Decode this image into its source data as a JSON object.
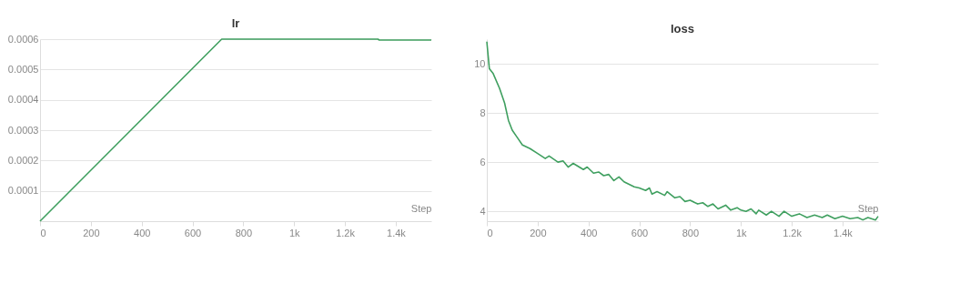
{
  "chart_data": [
    {
      "type": "line",
      "title": "lr",
      "xlabel": "Step",
      "x": [
        0,
        715,
        1330,
        1335,
        1540
      ],
      "series": [
        {
          "color": "#3f9f5f",
          "values": [
            0,
            0.0006,
            0.0006,
            0.000597,
            0.000597
          ]
        }
      ],
      "xlim": [
        0,
        1540
      ],
      "ylim": [
        0,
        0.0006
      ],
      "xticks": [
        0,
        200,
        400,
        600,
        800,
        {
          "value": 1000,
          "label": "1k"
        },
        {
          "value": 1200,
          "label": "1.2k"
        },
        {
          "value": 1400,
          "label": "1.4k"
        }
      ],
      "yticks": [
        0.0001,
        0.0002,
        0.0003,
        0.0004,
        0.0005,
        0.0006
      ],
      "grid": "y",
      "legend": false
    },
    {
      "type": "line",
      "title": "loss",
      "xlabel": "Step",
      "x": [
        0,
        10,
        25,
        50,
        70,
        85,
        100,
        120,
        140,
        170,
        200,
        230,
        245,
        280,
        300,
        320,
        340,
        380,
        395,
        420,
        440,
        460,
        480,
        500,
        520,
        540,
        560,
        580,
        600,
        625,
        640,
        650,
        670,
        700,
        710,
        740,
        760,
        780,
        800,
        830,
        850,
        870,
        890,
        910,
        940,
        960,
        985,
        1000,
        1020,
        1040,
        1060,
        1070,
        1100,
        1120,
        1150,
        1170,
        1200,
        1230,
        1260,
        1290,
        1320,
        1340,
        1370,
        1400,
        1430,
        1460,
        1480,
        1500,
        1530,
        1540
      ],
      "series": [
        {
          "color": "#3f9f5f",
          "values": [
            10.9,
            9.8,
            9.6,
            9.0,
            8.4,
            7.7,
            7.3,
            7.0,
            6.7,
            6.55,
            6.35,
            6.15,
            6.25,
            6.0,
            6.05,
            5.8,
            5.95,
            5.7,
            5.8,
            5.55,
            5.6,
            5.45,
            5.5,
            5.25,
            5.4,
            5.2,
            5.1,
            5.0,
            4.95,
            4.85,
            4.95,
            4.7,
            4.8,
            4.65,
            4.8,
            4.55,
            4.6,
            4.4,
            4.45,
            4.3,
            4.35,
            4.2,
            4.3,
            4.1,
            4.25,
            4.05,
            4.15,
            4.05,
            4.0,
            4.1,
            3.9,
            4.05,
            3.85,
            4.0,
            3.8,
            4.0,
            3.8,
            3.9,
            3.75,
            3.85,
            3.75,
            3.85,
            3.7,
            3.8,
            3.7,
            3.75,
            3.65,
            3.75,
            3.65,
            3.8
          ]
        }
      ],
      "xlim": [
        0,
        1540
      ],
      "ylim": [
        3.6,
        11
      ],
      "xticks": [
        0,
        200,
        400,
        600,
        800,
        {
          "value": 1000,
          "label": "1k"
        },
        {
          "value": 1200,
          "label": "1.2k"
        },
        {
          "value": 1400,
          "label": "1.4k"
        }
      ],
      "yticks": [
        4,
        6,
        8,
        10
      ],
      "grid": "y",
      "legend": false
    }
  ]
}
